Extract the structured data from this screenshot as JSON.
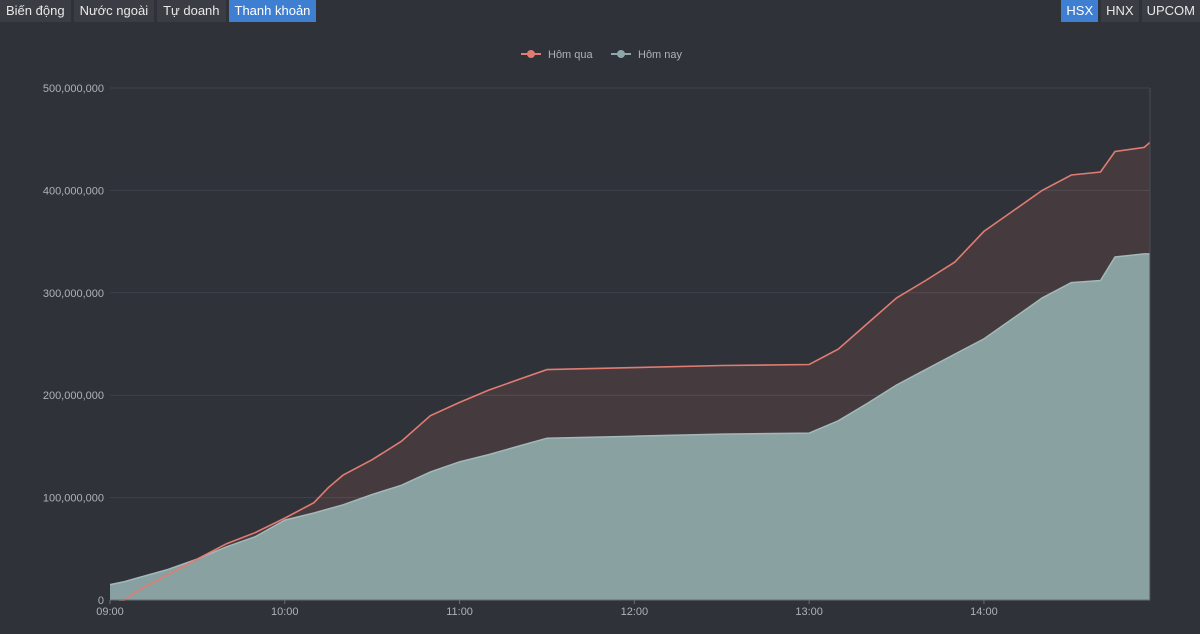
{
  "tabs": [
    {
      "label": "Biến động",
      "active": false
    },
    {
      "label": "Nước ngoài",
      "active": false
    },
    {
      "label": "Tự doanh",
      "active": false
    },
    {
      "label": "Thanh khoản",
      "active": true
    }
  ],
  "exchanges": [
    {
      "label": "HSX",
      "active": true
    },
    {
      "label": "HNX",
      "active": false
    },
    {
      "label": "UPCOM",
      "active": false
    }
  ],
  "colors": {
    "yesterday": "#e07c72",
    "today": "#8ea7a8",
    "active_tab": "#3f7fd2",
    "background": "#2f3238"
  },
  "chart_data": {
    "type": "area",
    "legend_position": "top-center",
    "grid": true,
    "xlim": [
      "09:00",
      "14:57"
    ],
    "ylim": [
      0,
      500000000
    ],
    "x_ticks": [
      "09:00",
      "10:00",
      "11:00",
      "12:00",
      "13:00",
      "14:00"
    ],
    "y_ticks": [
      "0",
      "100,000,000",
      "200,000,000",
      "300,000,000",
      "400,000,000",
      "500,000,000"
    ],
    "series": [
      {
        "name": "Hôm qua",
        "points": [
          [
            "09:03",
            0
          ],
          [
            "09:05",
            0
          ],
          [
            "09:10",
            10000000
          ],
          [
            "09:20",
            25000000
          ],
          [
            "09:30",
            40000000
          ],
          [
            "09:40",
            55000000
          ],
          [
            "09:50",
            66000000
          ],
          [
            "10:00",
            80000000
          ],
          [
            "10:10",
            95000000
          ],
          [
            "10:15",
            110000000
          ],
          [
            "10:20",
            122000000
          ],
          [
            "10:30",
            137000000
          ],
          [
            "10:40",
            155000000
          ],
          [
            "10:50",
            180000000
          ],
          [
            "11:00",
            193000000
          ],
          [
            "11:10",
            205000000
          ],
          [
            "11:20",
            215000000
          ],
          [
            "11:30",
            225000000
          ],
          [
            "12:00",
            227000000
          ],
          [
            "12:30",
            229000000
          ],
          [
            "13:00",
            230000000
          ],
          [
            "13:10",
            245000000
          ],
          [
            "13:20",
            270000000
          ],
          [
            "13:30",
            295000000
          ],
          [
            "13:40",
            312000000
          ],
          [
            "13:50",
            330000000
          ],
          [
            "14:00",
            360000000
          ],
          [
            "14:10",
            380000000
          ],
          [
            "14:20",
            400000000
          ],
          [
            "14:30",
            415000000
          ],
          [
            "14:40",
            418000000
          ],
          [
            "14:45",
            438000000
          ],
          [
            "14:55",
            442000000
          ],
          [
            "14:57",
            447000000
          ]
        ]
      },
      {
        "name": "Hôm nay",
        "points": [
          [
            "09:00",
            15000000
          ],
          [
            "09:05",
            18000000
          ],
          [
            "09:10",
            22000000
          ],
          [
            "09:20",
            30000000
          ],
          [
            "09:30",
            40000000
          ],
          [
            "09:40",
            52000000
          ],
          [
            "09:50",
            62000000
          ],
          [
            "10:00",
            78000000
          ],
          [
            "10:10",
            85000000
          ],
          [
            "10:20",
            93000000
          ],
          [
            "10:30",
            103000000
          ],
          [
            "10:40",
            112000000
          ],
          [
            "10:50",
            125000000
          ],
          [
            "11:00",
            135000000
          ],
          [
            "11:10",
            142000000
          ],
          [
            "11:20",
            150000000
          ],
          [
            "11:30",
            158000000
          ],
          [
            "12:00",
            160000000
          ],
          [
            "12:30",
            162000000
          ],
          [
            "13:00",
            163000000
          ],
          [
            "13:10",
            175000000
          ],
          [
            "13:20",
            192000000
          ],
          [
            "13:30",
            210000000
          ],
          [
            "13:40",
            225000000
          ],
          [
            "13:50",
            240000000
          ],
          [
            "14:00",
            255000000
          ],
          [
            "14:10",
            275000000
          ],
          [
            "14:20",
            295000000
          ],
          [
            "14:30",
            310000000
          ],
          [
            "14:40",
            312000000
          ],
          [
            "14:45",
            335000000
          ],
          [
            "14:55",
            338000000
          ],
          [
            "14:57",
            338000000
          ]
        ]
      }
    ]
  }
}
